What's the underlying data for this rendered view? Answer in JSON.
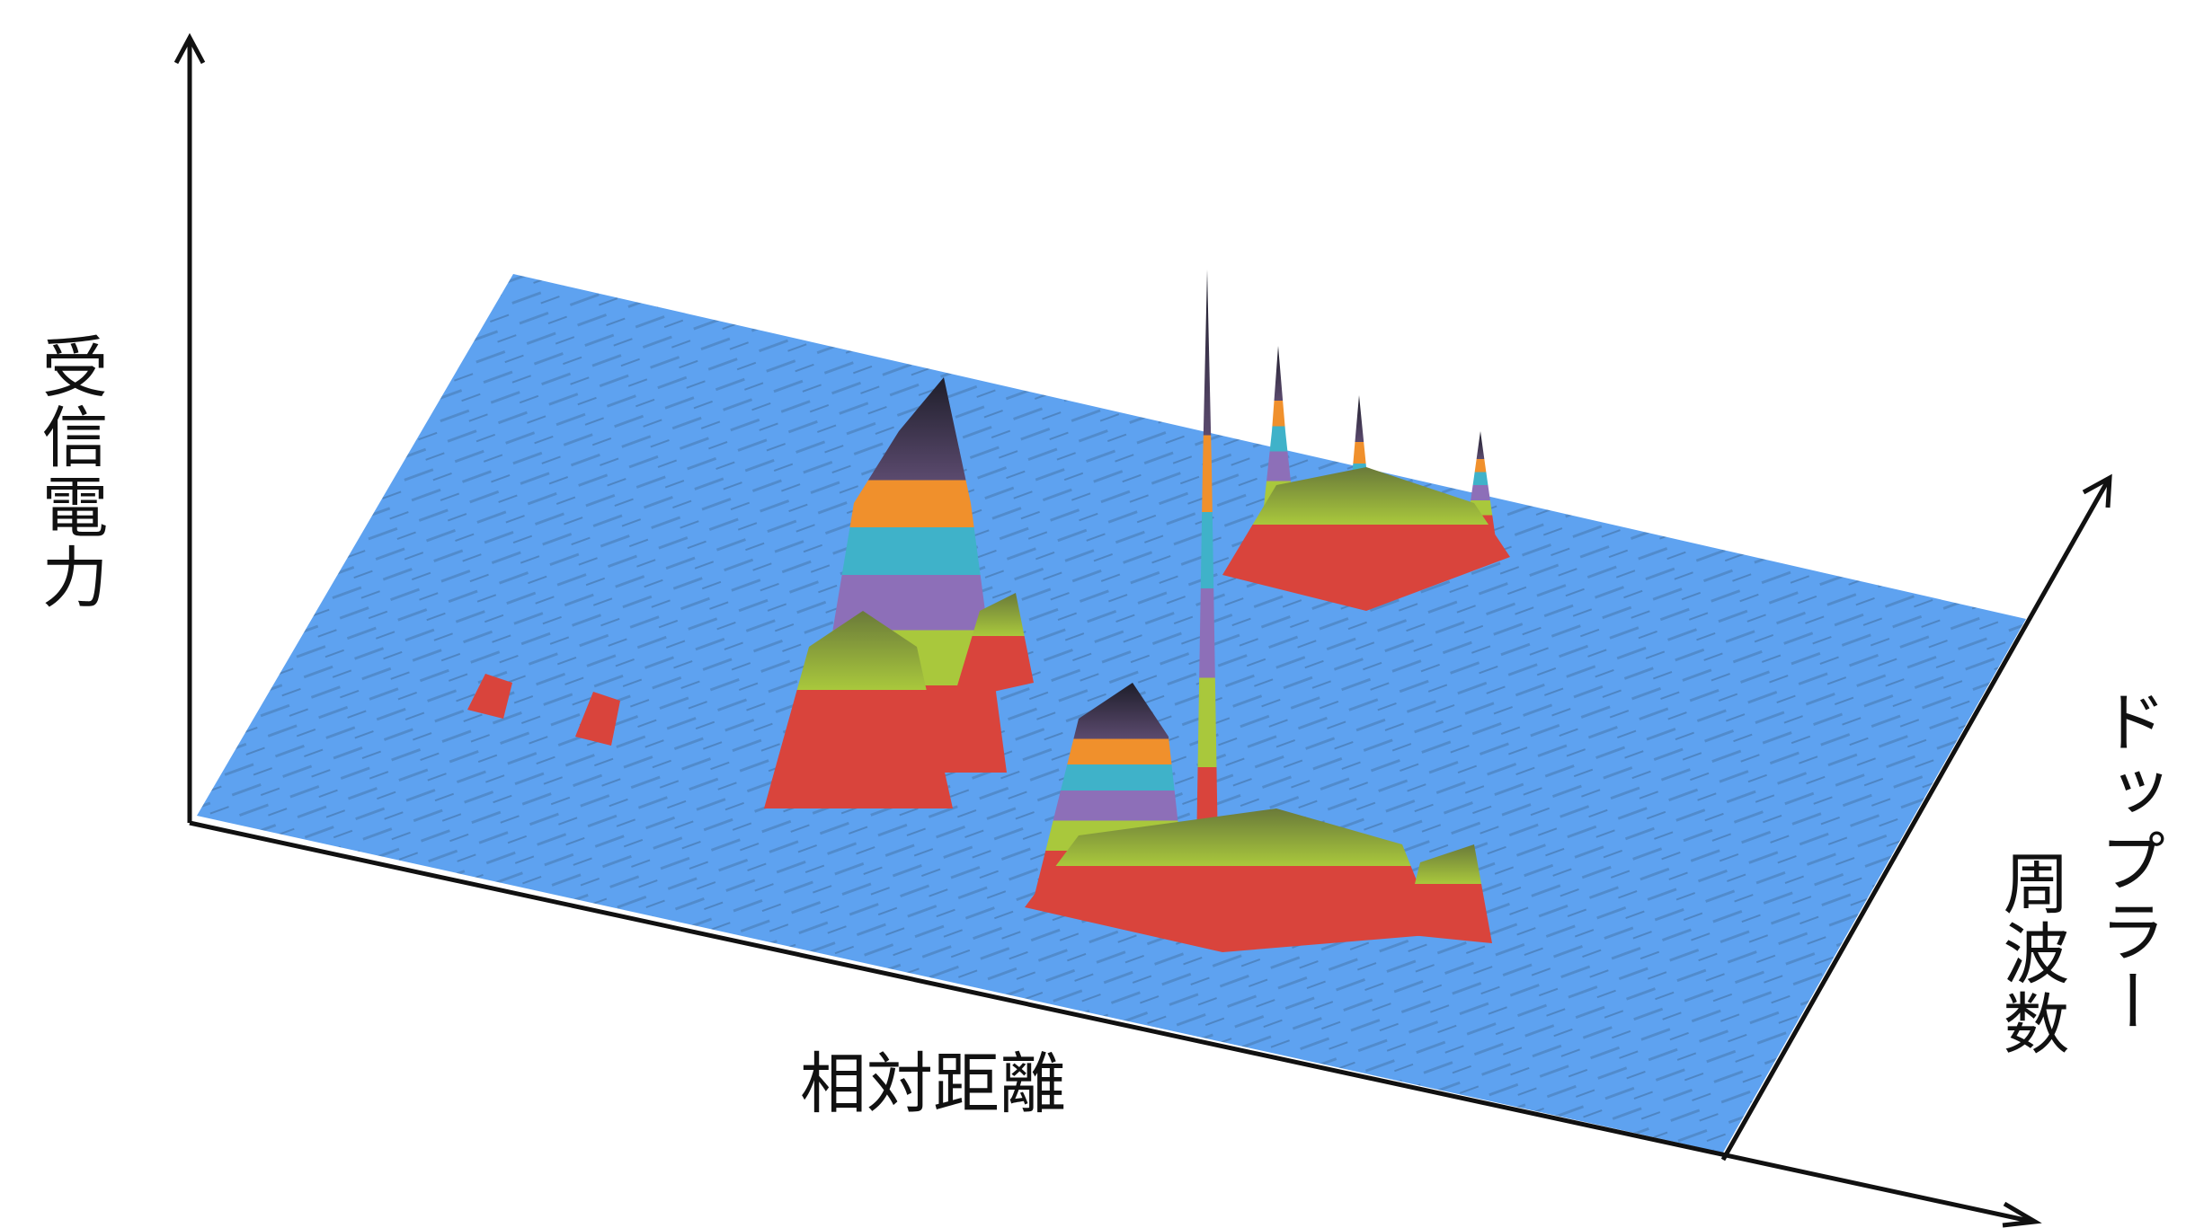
{
  "axes": {
    "power": "受信電力",
    "range": "相対距離",
    "doppler": [
      "ドップラー",
      "周波数"
    ]
  }
}
